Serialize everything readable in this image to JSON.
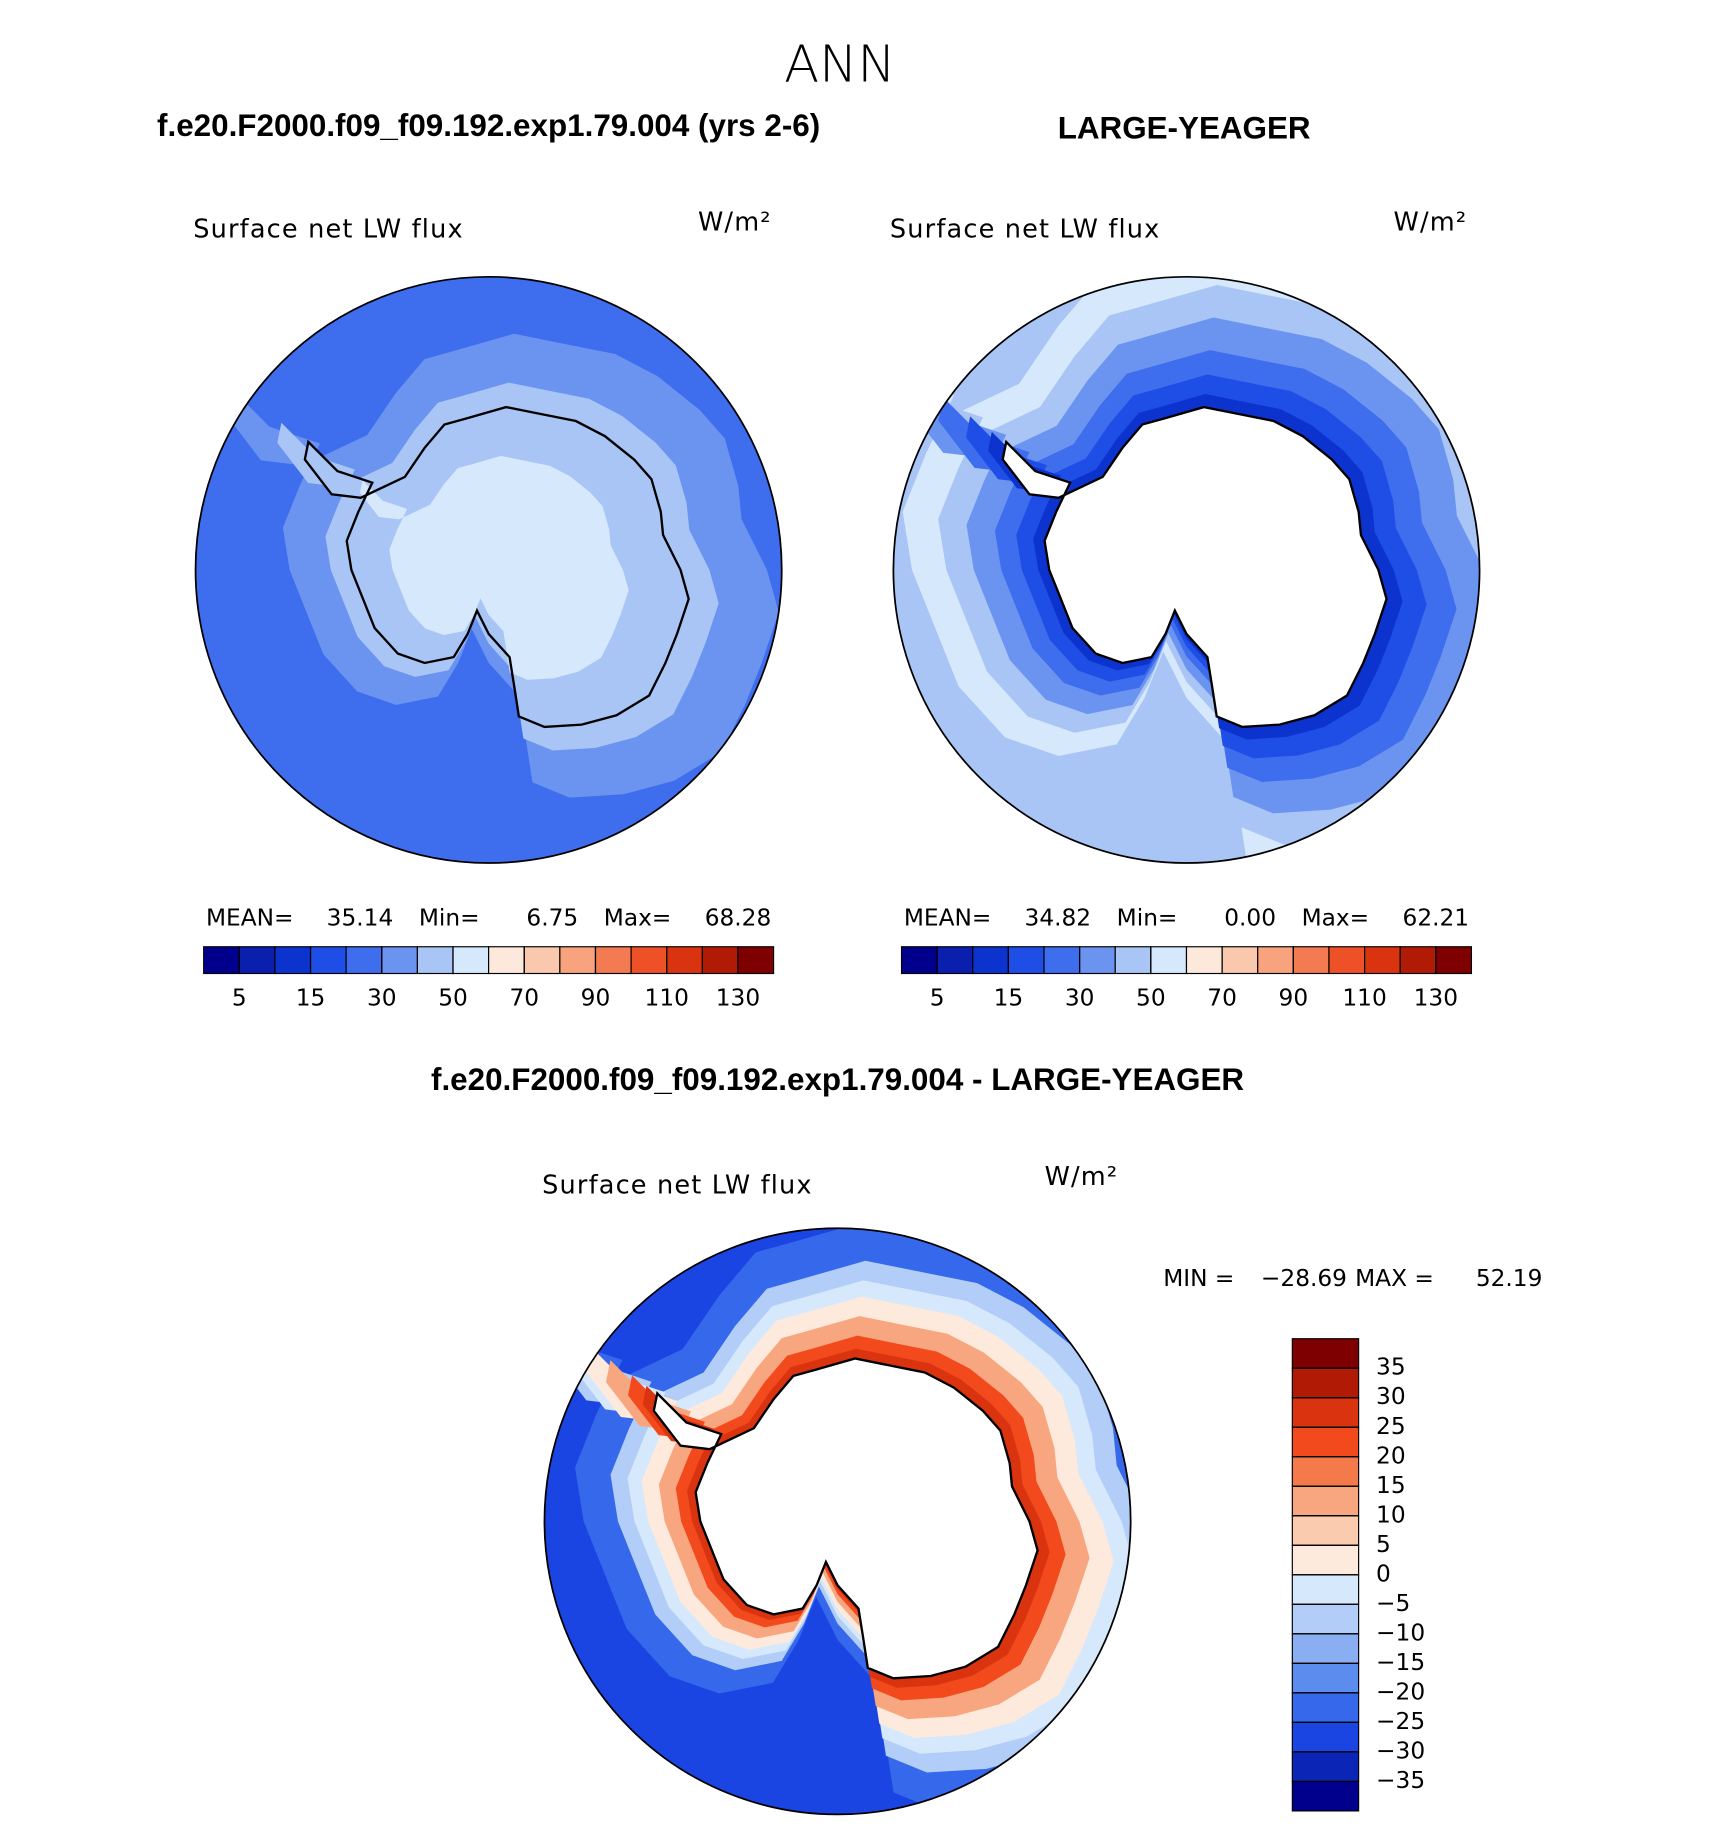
{
  "title": "ANN",
  "panels": [
    {
      "title": "f.e20.F2000.f09_f09.192.exp1.79.004 (yrs 2-6)",
      "variable": "Surface net LW flux",
      "units": "W/m²",
      "stats": [
        {
          "label": "MEAN=",
          "value": "35.14"
        },
        {
          "label": "Min=",
          "value": "6.75"
        },
        {
          "label": "Max=",
          "value": "68.28"
        }
      ]
    },
    {
      "title": "LARGE-YEAGER",
      "variable": "Surface net LW flux",
      "units": "W/m²",
      "stats": [
        {
          "label": "MEAN=",
          "value": "34.82"
        },
        {
          "label": "Min=",
          "value": "0.00"
        },
        {
          "label": "Max=",
          "value": "62.21"
        }
      ]
    }
  ],
  "colorbar": {
    "colors": [
      "#00008c",
      "#0a1fae",
      "#0d33cf",
      "#1f4ee6",
      "#3e6ded",
      "#6b94f0",
      "#a9c5f6",
      "#d6e8fb",
      "#fde9dc",
      "#fac8ad",
      "#f8a27e",
      "#f47a52",
      "#ee5128",
      "#d9330f",
      "#b11b06",
      "#7f0000"
    ],
    "ticks": [
      5,
      15,
      30,
      50,
      70,
      90,
      110,
      130
    ]
  },
  "difference": {
    "title": "f.e20.F2000.f09_f09.192.exp1.79.004 - LARGE-YEAGER",
    "variable": "Surface net LW flux",
    "units": "W/m²",
    "stats": [
      {
        "label": "MIN =",
        "value": "−28.69"
      },
      {
        "label": "MAX =",
        "value": "52.19"
      }
    ],
    "colorbar": {
      "colors": [
        "#7f0000",
        "#b11b06",
        "#d9330f",
        "#f2491d",
        "#f57a4b",
        "#f8a67f",
        "#fbcbb0",
        "#fdeadc",
        "#d6e8fb",
        "#b2cdf7",
        "#8aaef2",
        "#5d8cef",
        "#3668ec",
        "#1b45e2",
        "#0b25b6",
        "#00008c"
      ],
      "ticks": [
        35,
        30,
        25,
        20,
        15,
        10,
        5,
        0,
        {
          "value": -5,
          "label": "−5"
        },
        {
          "value": -10,
          "label": "−10"
        },
        {
          "value": -15,
          "label": "−15"
        },
        {
          "value": -20,
          "label": "−20"
        },
        {
          "value": -25,
          "label": "−25"
        },
        {
          "value": -30,
          "label": "−30"
        },
        {
          "value": -35,
          "label": "−35"
        }
      ]
    }
  }
}
